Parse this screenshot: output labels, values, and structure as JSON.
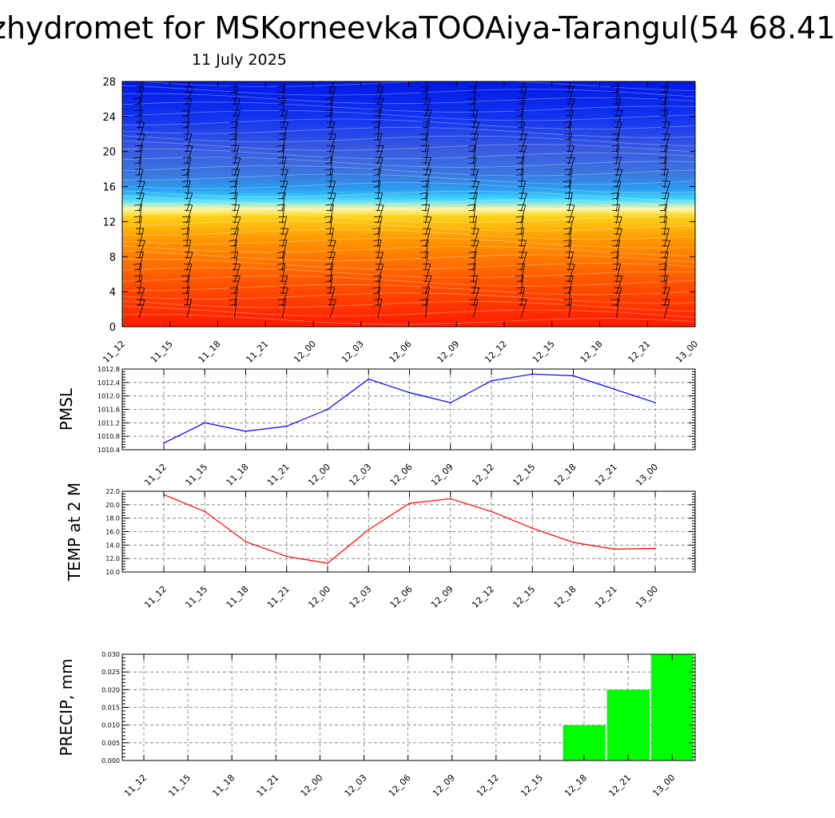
{
  "page": {
    "title": "zhydromet for MSKorneevkaTOOAiya-Tarangul(54 68.41",
    "subtitle": "11 July 2025"
  },
  "chart_data": [
    {
      "type": "heatmap",
      "name": "cross-section",
      "x_labels": [
        "11_12",
        "11_15",
        "11_18",
        "11_21",
        "12_00",
        "12_03",
        "12_06",
        "12_09",
        "12_12",
        "12_15",
        "12_18",
        "12_21",
        "13_00"
      ],
      "y_ticks": [
        0,
        4,
        8,
        12,
        16,
        20,
        24,
        28
      ],
      "ylim": [
        0,
        28
      ],
      "xlabel": "",
      "ylabel": "",
      "colors": [
        "#ff1a00",
        "#ff5a00",
        "#ff9a00",
        "#ffd21a",
        "#fff6a8",
        "#40d8ff",
        "#2a9df0",
        "#3c78e0",
        "#3a5be0",
        "#1234f0",
        "#0018e8"
      ],
      "wind_barbs": true
    },
    {
      "type": "line",
      "name": "pmsl",
      "ylabel": "PMSL",
      "categories": [
        "11_12",
        "11_15",
        "11_18",
        "11_21",
        "12_00",
        "12_03",
        "12_06",
        "12_09",
        "12_12",
        "12_15",
        "12_18",
        "12_21",
        "13_00"
      ],
      "values": [
        1010.6,
        1011.2,
        1010.95,
        1011.1,
        1011.6,
        1012.5,
        1012.1,
        1011.8,
        1012.45,
        1012.65,
        1012.6,
        1012.2,
        1011.8
      ],
      "ylim": [
        1010.4,
        1012.8
      ],
      "y_ticks": [
        "1010.4",
        "1010.8",
        "1011.2",
        "1011.6",
        "1012.0",
        "1012.4",
        "1012.8"
      ],
      "color": "#0000ff",
      "grid": true
    },
    {
      "type": "line",
      "name": "temp2m",
      "ylabel": "TEMP at 2 M",
      "categories": [
        "11_12",
        "11_15",
        "11_18",
        "11_21",
        "12_00",
        "12_03",
        "12_06",
        "12_09",
        "12_12",
        "12_15",
        "12_18",
        "12_21",
        "13_00"
      ],
      "values": [
        21.5,
        19.0,
        14.5,
        12.3,
        11.3,
        16.3,
        20.2,
        20.9,
        19.0,
        16.5,
        14.4,
        13.4,
        13.5
      ],
      "ylim": [
        10,
        22
      ],
      "y_ticks": [
        "10.0",
        "12.0",
        "14.0",
        "16.0",
        "18.0",
        "20.0",
        "22.0"
      ],
      "color": "#ff0000",
      "grid": true
    },
    {
      "type": "bar",
      "name": "precip",
      "ylabel": "PRECIP, mm",
      "categories": [
        "11_12",
        "11_15",
        "11_18",
        "11_21",
        "12_00",
        "12_03",
        "12_06",
        "12_09",
        "12_12",
        "12_15",
        "12_18",
        "12_21",
        "13_00"
      ],
      "values": [
        0,
        0,
        0,
        0,
        0,
        0,
        0,
        0,
        0,
        0,
        0.01,
        0.02,
        0.03
      ],
      "ylim": [
        0,
        0.03
      ],
      "y_ticks": [
        "0.000",
        "0.005",
        "0.010",
        "0.015",
        "0.020",
        "0.025",
        "0.030"
      ],
      "color": "#00ff00",
      "grid": true
    }
  ]
}
